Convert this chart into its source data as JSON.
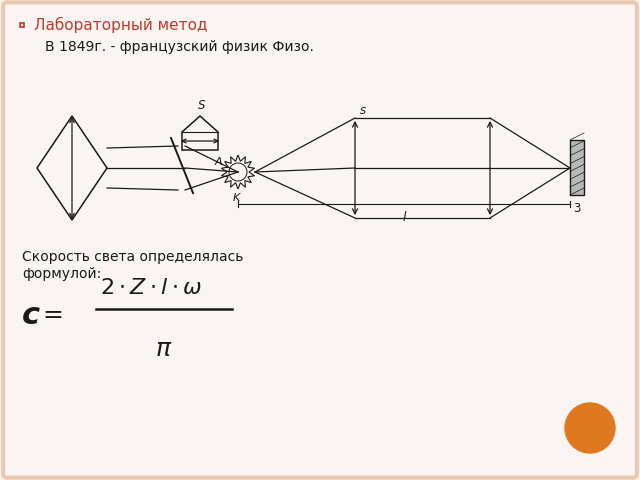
{
  "background_color": "#faf5f2",
  "border_color": "#e8c8b0",
  "title": "Лабораторный метод",
  "title_color": "#c0392b",
  "bullet_color": "#c0392b",
  "line1": "В 1849г. - французский физик Физо.",
  "text_speed": "Скорость света определялась",
  "text_formula": "формулой:",
  "text_color": "#1a1a1a",
  "diagram_color": "#1a1a1a",
  "orange_circle_color": "#e07820"
}
